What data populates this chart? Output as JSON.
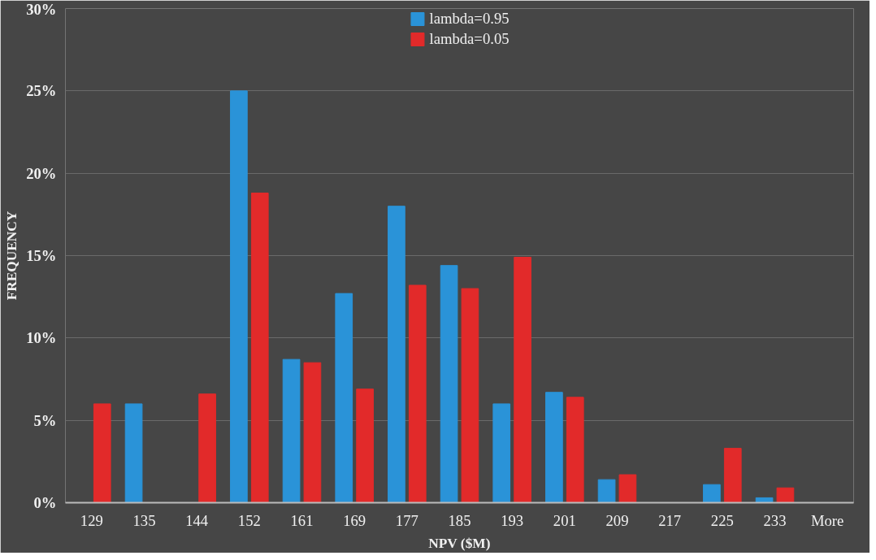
{
  "chart_data": {
    "type": "bar",
    "xlabel": "NPV ($M)",
    "ylabel": "FREQUENCY",
    "categories": [
      "129",
      "135",
      "144",
      "152",
      "161",
      "169",
      "177",
      "185",
      "193",
      "201",
      "209",
      "217",
      "225",
      "233",
      "More"
    ],
    "series": [
      {
        "name": "lambda=0.95",
        "color": "#2a93d8",
        "values": [
          0,
          6.0,
          0,
          25.0,
          8.7,
          12.7,
          18.0,
          14.4,
          6.0,
          6.7,
          1.4,
          0,
          1.1,
          0.3,
          0
        ]
      },
      {
        "name": "lambda=0.05",
        "color": "#e22a2a",
        "values": [
          6.0,
          0,
          6.6,
          18.8,
          8.5,
          6.9,
          13.2,
          13.0,
          14.9,
          6.4,
          1.7,
          0,
          3.3,
          0.9,
          0
        ]
      }
    ],
    "ylim": [
      0,
      30
    ],
    "yticks": [
      {
        "value": 0,
        "label": "0%"
      },
      {
        "value": 5,
        "label": "5%"
      },
      {
        "value": 10,
        "label": "10%"
      },
      {
        "value": 15,
        "label": "15%"
      },
      {
        "value": 20,
        "label": "20%"
      },
      {
        "value": 25,
        "label": "25%"
      },
      {
        "value": 30,
        "label": "30%"
      }
    ],
    "grid": "y",
    "legend": "top"
  }
}
